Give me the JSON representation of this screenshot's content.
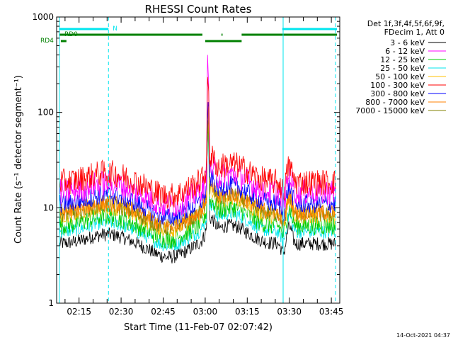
{
  "colors": {
    "axis": "#000000",
    "cyan": "#00e5ee",
    "status_green": "#008000"
  },
  "chart_data": {
    "type": "line",
    "title": "RHESSI Count Rates",
    "xlabel": "Start Time (11-Feb-07 02:07:42)",
    "ylabel": "Count Rate (s⁻¹ detector segment⁻¹)",
    "y_scale": "log",
    "ylim": [
      1,
      1000
    ],
    "xlim_minutes_since_0207": [
      0,
      101
    ],
    "x_ticks": [
      {
        "label": "02:15",
        "t": 8
      },
      {
        "label": "02:30",
        "t": 23
      },
      {
        "label": "02:45",
        "t": 38
      },
      {
        "label": "03:00",
        "t": 53
      },
      {
        "label": "03:15",
        "t": 68
      },
      {
        "label": "03:30",
        "t": 83
      },
      {
        "label": "03:45",
        "t": 98
      }
    ],
    "y_ticks": [
      {
        "label": "1",
        "v": 1
      },
      {
        "label": "10",
        "v": 10
      },
      {
        "label": "100",
        "v": 100
      },
      {
        "label": "1000",
        "v": 1000
      }
    ],
    "legend_header": [
      "Det 1f,3f,4f,5f,6f,9f,",
      "FDecim 1, Att 0"
    ],
    "legend_position": "right",
    "timestamp": "14-Oct-2021 04:37",
    "status_bars": {
      "night_label": "N",
      "rd0_label": "RD0",
      "rd4_label": "RD4",
      "night": [
        [
          1,
          18.5
        ],
        [
          80.5,
          100
        ]
      ],
      "rd0": [
        [
          1,
          52
        ],
        [
          58.8,
          59.2
        ],
        [
          66,
          100
        ]
      ],
      "rd4": [
        [
          1.5,
          3.5
        ],
        [
          53,
          66
        ]
      ]
    },
    "vertical_markers": {
      "solid": [
        1,
        80.8
      ],
      "dashed": [
        18.5,
        99.5
      ]
    },
    "series": [
      {
        "name": "3 - 6 keV",
        "color": "#000000",
        "base": 4.2,
        "spread": 1.4
      },
      {
        "name": "6 - 12 keV",
        "color": "#ff00ff",
        "base": 14.5,
        "spread": 1.9
      },
      {
        "name": "12 - 25 keV",
        "color": "#00cc00",
        "base": 6.5,
        "spread": 1.6
      },
      {
        "name": "25 - 50 keV",
        "color": "#00e5ee",
        "base": 5.6,
        "spread": 1.4
      },
      {
        "name": "50 - 100 keV",
        "color": "#ffc000",
        "base": 8.2,
        "spread": 1.5
      },
      {
        "name": "100 - 300 keV",
        "color": "#ff0000",
        "base": 18.5,
        "spread": 1.9
      },
      {
        "name": "300 - 800 keV",
        "color": "#0000ff",
        "base": 11,
        "spread": 1.6
      },
      {
        "name": "800 - 7000 keV",
        "color": "#ff8000",
        "base": 9,
        "spread": 1.5
      },
      {
        "name": "7000 - 15000 keV",
        "color": "#808000",
        "base": 8.6,
        "spread": 1.5
      }
    ]
  }
}
